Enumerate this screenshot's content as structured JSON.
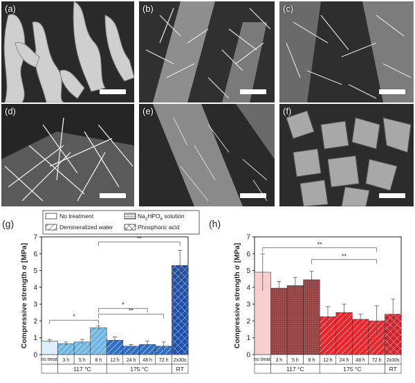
{
  "sem_panels": [
    {
      "label": "(a)"
    },
    {
      "label": "(b)"
    },
    {
      "label": "(c)"
    },
    {
      "label": "(d)"
    },
    {
      "label": "(e)"
    },
    {
      "label": "(f)"
    }
  ],
  "legend": {
    "items": [
      {
        "label": "No treatment",
        "pattern": "plain"
      },
      {
        "label": "Na2HPO4 solution",
        "pattern": "dense-grid"
      },
      {
        "label": "Demineralized water",
        "pattern": "diagonal"
      },
      {
        "label": "Phosphoric acid",
        "pattern": "cross"
      }
    ]
  },
  "colors": {
    "g_none": "#ddeefa",
    "g_water": "#6fb6e6",
    "g_175": "#2f6fc4",
    "g_rt": "#1f4fa8",
    "h_none": "#f7cfcf",
    "h_117": "#a85050",
    "h_175": "#e8262d",
    "h_rt": "#d8202a"
  },
  "chart_data": [
    {
      "panel": "(g)",
      "type": "bar",
      "ylabel": "Compressive strength σ [MPa]",
      "ylim": [
        0,
        7
      ],
      "yticks": [
        0,
        1,
        2,
        3,
        4,
        5,
        6,
        7
      ],
      "categories": [
        "no treat.",
        "3 h",
        "5 h",
        "8 h",
        "12 h",
        "24 h",
        "48 h",
        "72 h",
        "2x30s"
      ],
      "values": [
        0.8,
        0.65,
        0.75,
        1.6,
        0.85,
        0.5,
        0.6,
        0.5,
        5.3
      ],
      "errors": [
        0.1,
        0.1,
        0.15,
        0.1,
        0.2,
        0.1,
        0.2,
        0.25,
        0.9
      ],
      "patterns": [
        "plain",
        "diagonal",
        "diagonal",
        "diagonal",
        "diagonal",
        "diagonal",
        "diagonal",
        "diagonal",
        "cross"
      ],
      "color_keys": [
        "g_none",
        "g_water",
        "g_water",
        "g_water",
        "g_175",
        "g_175",
        "g_175",
        "g_175",
        "g_rt"
      ],
      "groups": [
        {
          "label": "117 °C",
          "from": 1,
          "to": 3
        },
        {
          "label": "175 °C",
          "from": 4,
          "to": 7
        },
        {
          "label": "RT",
          "from": 8,
          "to": 8
        }
      ],
      "significance": [
        {
          "label": "*",
          "from": 0,
          "to": 3
        },
        {
          "label": "**",
          "from": 3,
          "to": 7
        },
        {
          "label": "*",
          "from": 3,
          "to": 6
        },
        {
          "label": "**",
          "from": 3,
          "to": 8
        }
      ]
    },
    {
      "panel": "(h)",
      "type": "bar",
      "ylabel": "Compressive strength σ [MPa]",
      "ylim": [
        0,
        7
      ],
      "yticks": [
        0,
        1,
        2,
        3,
        4,
        5,
        6,
        7
      ],
      "categories": [
        "no treat.",
        "3 h",
        "5 h",
        "8 h",
        "12 h",
        "24 h",
        "48 h",
        "72 h",
        "2x30s"
      ],
      "values": [
        4.9,
        3.95,
        4.1,
        4.45,
        2.25,
        2.5,
        2.1,
        2.0,
        2.4
      ],
      "errors": [
        1.1,
        0.4,
        0.5,
        0.5,
        0.6,
        0.5,
        0.3,
        0.9,
        0.9
      ],
      "patterns": [
        "plain",
        "dense-grid",
        "dense-grid",
        "dense-grid",
        "diagonal",
        "diagonal",
        "diagonal",
        "diagonal",
        "cross"
      ],
      "color_keys": [
        "h_none",
        "h_117",
        "h_117",
        "h_117",
        "h_175",
        "h_175",
        "h_175",
        "h_175",
        "h_rt"
      ],
      "groups": [
        {
          "label": "117 °C",
          "from": 1,
          "to": 3
        },
        {
          "label": "175 °C",
          "from": 4,
          "to": 7
        },
        {
          "label": "RT",
          "from": 8,
          "to": 8
        }
      ],
      "significance": [
        {
          "label": "**",
          "from": 0,
          "to": 7
        },
        {
          "label": "**",
          "from": 3,
          "to": 7
        }
      ]
    }
  ]
}
